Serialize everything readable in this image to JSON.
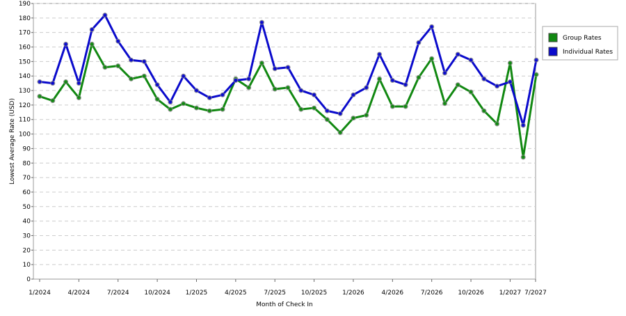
{
  "chart_data": {
    "type": "line",
    "x_label": "Month of Check In",
    "y_label": "Lowest Average Rate (USD)",
    "categories": [
      "1/2024",
      null,
      null,
      "4/2024",
      null,
      null,
      "7/2024",
      null,
      null,
      "10/2024",
      null,
      null,
      "1/2025",
      null,
      null,
      "4/2025",
      null,
      null,
      "7/2025",
      null,
      null,
      "10/2025",
      null,
      null,
      "1/2026",
      null,
      null,
      "4/2026",
      null,
      null,
      "7/2026",
      null,
      null,
      "10/2026",
      null,
      null,
      "1/2027",
      null,
      "7/2027"
    ],
    "series": [
      {
        "name": "Group Rates",
        "color": "#118811",
        "values": [
          126,
          123,
          136,
          125,
          162,
          146,
          147,
          138,
          140,
          124,
          117,
          121,
          118,
          116,
          117,
          138,
          132,
          149,
          131,
          132,
          117,
          118,
          110,
          101,
          111,
          113,
          138,
          119,
          119,
          139,
          152,
          121,
          134,
          129,
          116,
          107,
          149,
          84,
          141
        ]
      },
      {
        "name": "Individual Rates",
        "color": "#0a0acc",
        "values": [
          136,
          135,
          162,
          135,
          172,
          182,
          164,
          151,
          150,
          134,
          122,
          140,
          130,
          125,
          127,
          137,
          138,
          177,
          145,
          146,
          130,
          127,
          116,
          114,
          127,
          132,
          155,
          137,
          134,
          163,
          174,
          142,
          155,
          151,
          138,
          133,
          136,
          106,
          151
        ]
      }
    ],
    "ylim": [
      0,
      190
    ],
    "yticks": [
      0,
      10,
      20,
      30,
      40,
      50,
      60,
      70,
      80,
      90,
      100,
      110,
      120,
      130,
      140,
      150,
      160,
      170,
      180,
      190
    ],
    "grid": true,
    "legend": "right"
  }
}
